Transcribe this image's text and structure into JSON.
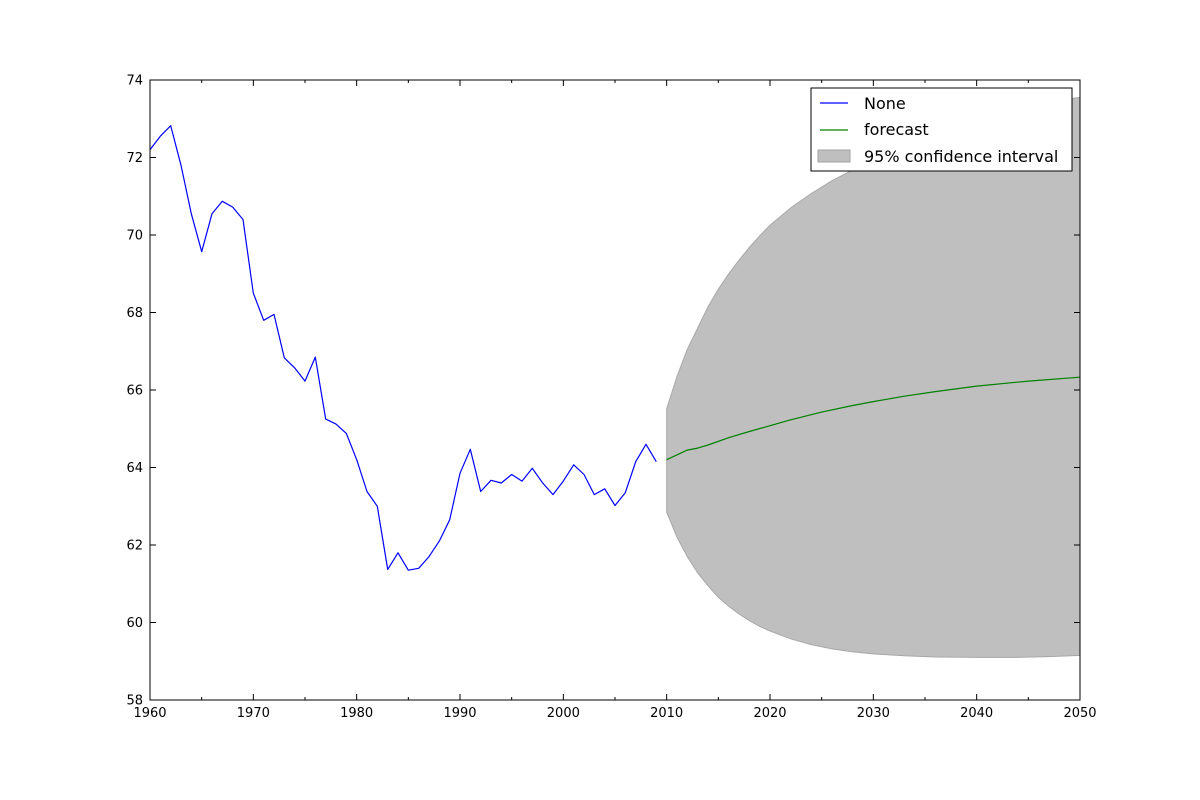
{
  "chart_data": {
    "type": "line",
    "title": "",
    "xlabel": "",
    "ylabel": "",
    "xlim": [
      1960,
      2050
    ],
    "ylim": [
      58,
      74
    ],
    "grid": false,
    "legend_position": "top-right",
    "x_ticks": [
      "1960",
      "1970",
      "1980",
      "1990",
      "2000",
      "2010",
      "2020",
      "2030",
      "2040",
      "2050"
    ],
    "y_ticks": [
      "58",
      "60",
      "62",
      "64",
      "66",
      "68",
      "70",
      "72",
      "74"
    ],
    "series": [
      {
        "name": "None",
        "color": "#0000ff",
        "x": [
          1960,
          1961,
          1962,
          1963,
          1964,
          1965,
          1966,
          1967,
          1968,
          1969,
          1970,
          1971,
          1972,
          1973,
          1974,
          1975,
          1976,
          1977,
          1978,
          1979,
          1980,
          1981,
          1982,
          1983,
          1984,
          1985,
          1986,
          1987,
          1988,
          1989,
          1990,
          1991,
          1992,
          1993,
          1994,
          1995,
          1996,
          1997,
          1998,
          1999,
          2000,
          2001,
          2002,
          2003,
          2004,
          2005,
          2006,
          2007,
          2008,
          2009
        ],
        "y": [
          72.2,
          72.55,
          72.82,
          71.8,
          70.55,
          69.57,
          70.55,
          70.87,
          70.72,
          70.4,
          68.5,
          67.8,
          67.95,
          66.83,
          66.57,
          66.23,
          66.85,
          65.25,
          65.12,
          64.88,
          64.2,
          63.38,
          63.0,
          61.37,
          61.8,
          61.35,
          61.4,
          61.7,
          62.1,
          62.65,
          63.85,
          64.47,
          63.38,
          63.67,
          63.6,
          63.82,
          63.65,
          63.98,
          63.6,
          63.3,
          63.65,
          64.07,
          63.82,
          63.3,
          63.45,
          63.02,
          63.35,
          64.15,
          64.6,
          64.15
        ]
      },
      {
        "name": "forecast",
        "color": "#008000",
        "x": [
          2010,
          2012,
          2013,
          2014,
          2016,
          2018,
          2020,
          2022,
          2025,
          2028,
          2030,
          2033,
          2036,
          2040,
          2045,
          2050
        ],
        "y": [
          64.2,
          64.45,
          64.5,
          64.58,
          64.77,
          64.93,
          65.08,
          65.23,
          65.43,
          65.6,
          65.7,
          65.84,
          65.96,
          66.1,
          66.23,
          66.33
        ]
      }
    ],
    "confidence_interval": {
      "name": "95% confidence interval",
      "color": "#bfbfbf",
      "x": [
        2010,
        2011,
        2012,
        2013,
        2014,
        2015,
        2016,
        2017,
        2018,
        2019,
        2020,
        2022,
        2024,
        2026,
        2028,
        2030,
        2033,
        2036,
        2040,
        2044,
        2047,
        2050
      ],
      "upper": [
        65.52,
        66.35,
        67.05,
        67.6,
        68.15,
        68.6,
        69.0,
        69.35,
        69.68,
        69.98,
        70.25,
        70.7,
        71.07,
        71.4,
        71.68,
        71.95,
        72.3,
        72.62,
        73.0,
        73.3,
        73.45,
        73.55
      ],
      "lower": [
        62.85,
        62.2,
        61.7,
        61.28,
        60.95,
        60.65,
        60.42,
        60.22,
        60.05,
        59.9,
        59.78,
        59.58,
        59.43,
        59.32,
        59.24,
        59.19,
        59.14,
        59.11,
        59.1,
        59.1,
        59.12,
        59.15
      ]
    }
  }
}
